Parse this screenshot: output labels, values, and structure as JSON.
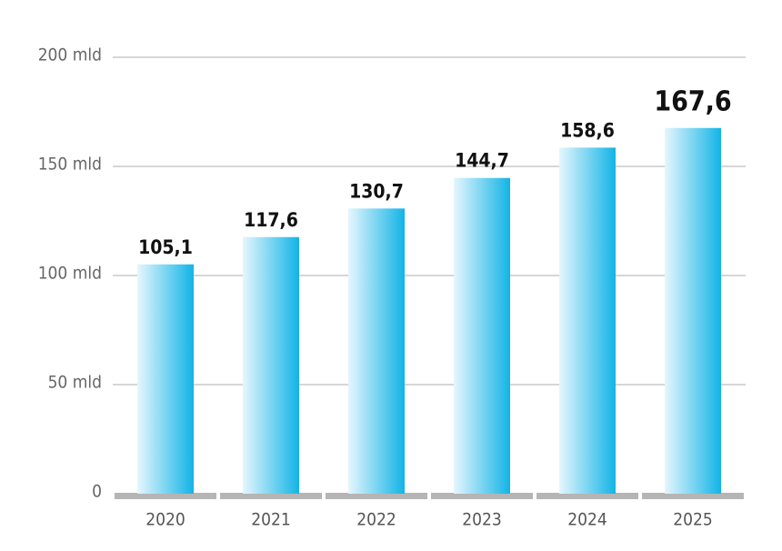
{
  "chart_data": {
    "type": "bar",
    "categories": [
      "2020",
      "2021",
      "2022",
      "2023",
      "2024",
      "2025"
    ],
    "values": [
      105.1,
      117.6,
      130.7,
      144.7,
      158.6,
      167.6
    ],
    "value_labels": [
      "105,1",
      "117,6",
      "130,7",
      "144,7",
      "158,6",
      "167,6"
    ],
    "color": "#12b4e6",
    "ylim": [
      0,
      200
    ],
    "yticks": [
      0,
      {
        "value": 50,
        "label": "50 mld"
      },
      {
        "value": 100,
        "label": "100 mld"
      },
      {
        "value": 150,
        "label": "150 mld"
      },
      {
        "value": 200,
        "label": "200 mld"
      }
    ],
    "grid": true
  }
}
